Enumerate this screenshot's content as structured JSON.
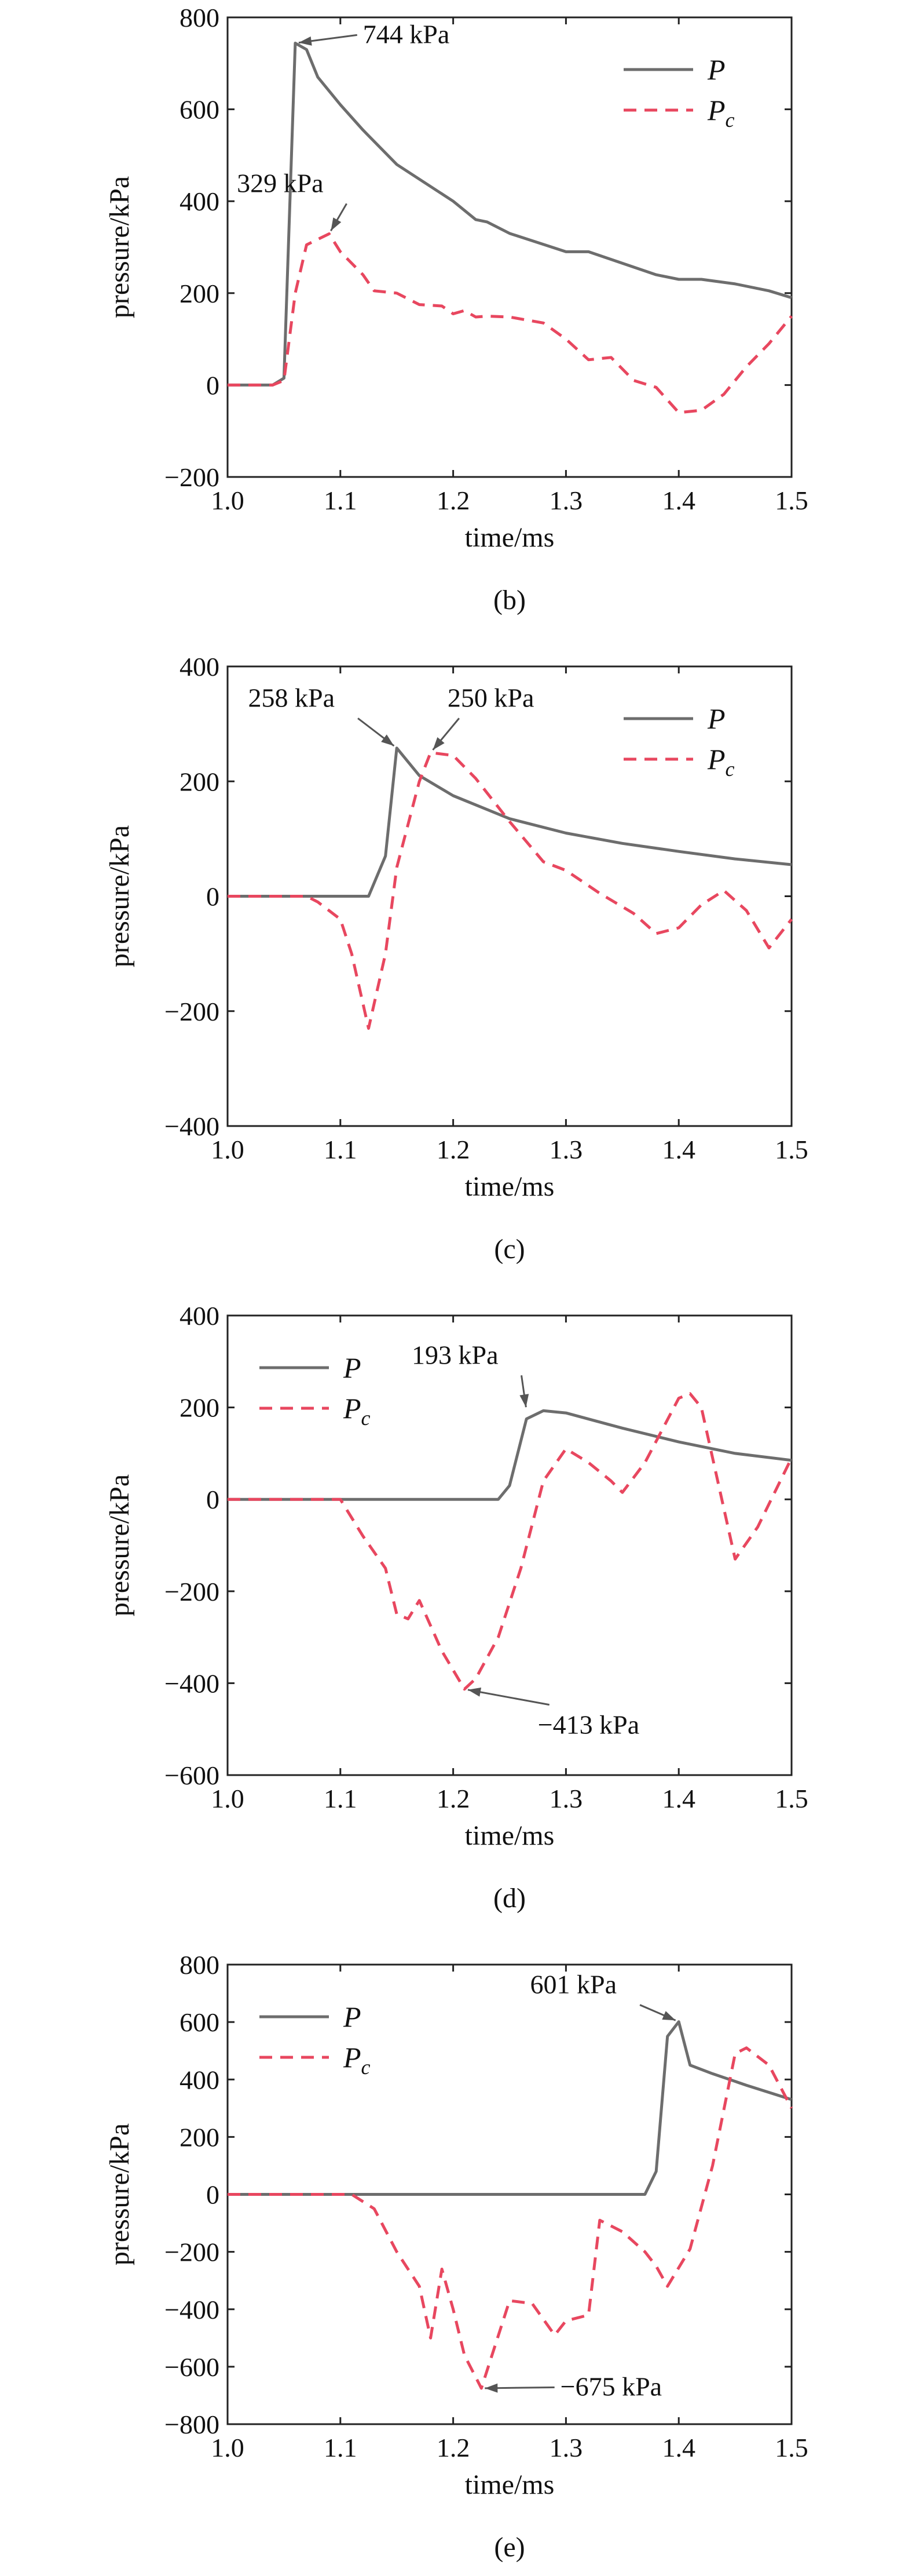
{
  "chart_data": [
    {
      "type": "line",
      "caption": "(b)",
      "xlabel": "time/ms",
      "ylabel": "pressure/kPa",
      "xlim": [
        1.0,
        1.5
      ],
      "ylim": [
        -200,
        800
      ],
      "xticks": [
        1.0,
        1.1,
        1.2,
        1.3,
        1.4,
        1.5
      ],
      "yticks": [
        -200,
        0,
        200,
        400,
        600,
        800
      ],
      "xtick_labels": [
        "1.0",
        "1.1",
        "1.2",
        "1.3",
        "1.4",
        "1.5"
      ],
      "ytick_labels": [
        "−200",
        "0",
        "200",
        "400",
        "600",
        "800"
      ],
      "legend": {
        "position": "top-right",
        "entries": [
          {
            "main": "P",
            "sub": ""
          },
          {
            "main": "P",
            "sub": "c"
          }
        ]
      },
      "series": [
        {
          "name": "P",
          "style": "solid",
          "color": "#6d6d6d",
          "x": [
            1.0,
            1.04,
            1.05,
            1.06,
            1.07,
            1.08,
            1.1,
            1.12,
            1.15,
            1.2,
            1.22,
            1.23,
            1.25,
            1.3,
            1.32,
            1.35,
            1.38,
            1.4,
            1.42,
            1.45,
            1.48,
            1.5
          ],
          "y": [
            0,
            0,
            15,
            744,
            730,
            670,
            610,
            555,
            480,
            400,
            360,
            355,
            330,
            290,
            290,
            265,
            240,
            230,
            230,
            220,
            205,
            190
          ]
        },
        {
          "name": "Pc",
          "style": "dashed",
          "color": "#e8475f",
          "x": [
            1.0,
            1.04,
            1.05,
            1.06,
            1.07,
            1.09,
            1.1,
            1.12,
            1.13,
            1.15,
            1.17,
            1.19,
            1.2,
            1.21,
            1.22,
            1.23,
            1.25,
            1.28,
            1.3,
            1.32,
            1.34,
            1.36,
            1.38,
            1.4,
            1.42,
            1.44,
            1.46,
            1.48,
            1.5
          ],
          "y": [
            0,
            0,
            10,
            200,
            305,
            329,
            290,
            240,
            205,
            200,
            175,
            172,
            155,
            162,
            148,
            150,
            148,
            135,
            100,
            55,
            60,
            10,
            -5,
            -60,
            -55,
            -20,
            40,
            90,
            150
          ]
        }
      ],
      "annotations": [
        {
          "text": "744 kPa",
          "x": 1.06,
          "y": 744,
          "tx": 1.12,
          "ty": 744
        },
        {
          "text": "329 kPa",
          "x": 1.09,
          "y": 329,
          "tx": 1.085,
          "ty": 420
        }
      ]
    },
    {
      "type": "line",
      "caption": "(c)",
      "xlabel": "time/ms",
      "ylabel": "pressure/kPa",
      "xlim": [
        1.0,
        1.5
      ],
      "ylim": [
        -400,
        400
      ],
      "xticks": [
        1.0,
        1.1,
        1.2,
        1.3,
        1.4,
        1.5
      ],
      "yticks": [
        -400,
        -200,
        0,
        200,
        400
      ],
      "xtick_labels": [
        "1.0",
        "1.1",
        "1.2",
        "1.3",
        "1.4",
        "1.5"
      ],
      "ytick_labels": [
        "−400",
        "−200",
        "0",
        "200",
        "400"
      ],
      "legend": {
        "position": "top-right",
        "entries": [
          {
            "main": "P",
            "sub": ""
          },
          {
            "main": "P",
            "sub": "c"
          }
        ]
      },
      "series": [
        {
          "name": "P",
          "style": "solid",
          "color": "#6d6d6d",
          "x": [
            1.0,
            1.125,
            1.14,
            1.15,
            1.17,
            1.2,
            1.25,
            1.3,
            1.35,
            1.4,
            1.45,
            1.5
          ],
          "y": [
            0,
            0,
            70,
            258,
            210,
            175,
            135,
            110,
            92,
            78,
            65,
            55
          ]
        },
        {
          "name": "Pc",
          "style": "dashed",
          "color": "#e8475f",
          "x": [
            1.0,
            1.07,
            1.08,
            1.1,
            1.11,
            1.125,
            1.14,
            1.15,
            1.17,
            1.18,
            1.2,
            1.22,
            1.25,
            1.28,
            1.3,
            1.33,
            1.36,
            1.38,
            1.4,
            1.42,
            1.44,
            1.46,
            1.48,
            1.5
          ],
          "y": [
            0,
            0,
            -10,
            -40,
            -100,
            -230,
            -100,
            50,
            200,
            250,
            245,
            205,
            130,
            60,
            45,
            5,
            -30,
            -65,
            -55,
            -15,
            10,
            -25,
            -90,
            -40
          ]
        }
      ],
      "annotations": [
        {
          "text": "258 kPa",
          "x": 1.15,
          "y": 258,
          "tx": 1.095,
          "ty": 330
        },
        {
          "text": "250 kPa",
          "x": 1.18,
          "y": 250,
          "tx": 1.195,
          "ty": 330
        }
      ]
    },
    {
      "type": "line",
      "caption": "(d)",
      "xlabel": "time/ms",
      "ylabel": "pressure/kPa",
      "xlim": [
        1.0,
        1.5
      ],
      "ylim": [
        -600,
        400
      ],
      "xticks": [
        1.0,
        1.1,
        1.2,
        1.3,
        1.4,
        1.5
      ],
      "yticks": [
        -600,
        -400,
        -200,
        0,
        200,
        400
      ],
      "xtick_labels": [
        "1.0",
        "1.1",
        "1.2",
        "1.3",
        "1.4",
        "1.5"
      ],
      "ytick_labels": [
        "−600",
        "−400",
        "−200",
        "0",
        "200",
        "400"
      ],
      "legend": {
        "position": "top-left",
        "entries": [
          {
            "main": "P",
            "sub": ""
          },
          {
            "main": "P",
            "sub": "c"
          }
        ]
      },
      "series": [
        {
          "name": "P",
          "style": "solid",
          "color": "#6d6d6d",
          "x": [
            1.0,
            1.24,
            1.25,
            1.265,
            1.28,
            1.3,
            1.35,
            1.4,
            1.45,
            1.5
          ],
          "y": [
            0,
            0,
            30,
            175,
            193,
            188,
            155,
            125,
            100,
            85
          ]
        },
        {
          "name": "Pc",
          "style": "dashed",
          "color": "#e8475f",
          "x": [
            1.0,
            1.1,
            1.12,
            1.14,
            1.15,
            1.16,
            1.17,
            1.19,
            1.21,
            1.22,
            1.24,
            1.26,
            1.28,
            1.3,
            1.32,
            1.34,
            1.35,
            1.37,
            1.4,
            1.41,
            1.42,
            1.44,
            1.45,
            1.47,
            1.5
          ],
          "y": [
            0,
            0,
            -80,
            -150,
            -250,
            -260,
            -220,
            -330,
            -413,
            -390,
            -300,
            -150,
            40,
            110,
            80,
            40,
            15,
            80,
            220,
            230,
            200,
            -20,
            -130,
            -60,
            90
          ]
        }
      ],
      "annotations": [
        {
          "text": "193 kPa",
          "x": 1.265,
          "y": 193,
          "tx": 1.24,
          "ty": 295
        },
        {
          "text": "−413 kPa",
          "x": 1.21,
          "y": -413,
          "tx": 1.275,
          "ty": -510
        }
      ]
    },
    {
      "type": "line",
      "caption": "(e)",
      "xlabel": "time/ms",
      "ylabel": "pressure/kPa",
      "xlim": [
        1.0,
        1.5
      ],
      "ylim": [
        -800,
        800
      ],
      "xticks": [
        1.0,
        1.1,
        1.2,
        1.3,
        1.4,
        1.5
      ],
      "yticks": [
        -800,
        -600,
        -400,
        -200,
        0,
        200,
        400,
        600,
        800
      ],
      "xtick_labels": [
        "1.0",
        "1.1",
        "1.2",
        "1.3",
        "1.4",
        "1.5"
      ],
      "ytick_labels": [
        "−800",
        "−600",
        "−400",
        "−200",
        "0",
        "200",
        "400",
        "600",
        "800"
      ],
      "legend": {
        "position": "top-left",
        "entries": [
          {
            "main": "P",
            "sub": ""
          },
          {
            "main": "P",
            "sub": "c"
          }
        ]
      },
      "series": [
        {
          "name": "P",
          "style": "solid",
          "color": "#6d6d6d",
          "x": [
            1.0,
            1.37,
            1.38,
            1.39,
            1.4,
            1.41,
            1.43,
            1.46,
            1.5
          ],
          "y": [
            0,
            0,
            80,
            550,
            601,
            450,
            420,
            380,
            330
          ]
        },
        {
          "name": "Pc",
          "style": "dashed",
          "color": "#e8475f",
          "x": [
            1.0,
            1.11,
            1.13,
            1.15,
            1.17,
            1.18,
            1.19,
            1.2,
            1.21,
            1.225,
            1.25,
            1.27,
            1.29,
            1.3,
            1.32,
            1.33,
            1.35,
            1.37,
            1.38,
            1.39,
            1.41,
            1.43,
            1.45,
            1.46,
            1.48,
            1.5
          ],
          "y": [
            0,
            0,
            -50,
            -200,
            -320,
            -500,
            -260,
            -400,
            -560,
            -675,
            -370,
            -380,
            -490,
            -440,
            -420,
            -90,
            -130,
            -200,
            -250,
            -320,
            -190,
            100,
            490,
            510,
            450,
            300
          ]
        }
      ],
      "annotations": [
        {
          "text": "601 kPa",
          "x": 1.4,
          "y": 601,
          "tx": 1.345,
          "ty": 700
        },
        {
          "text": "−675 kPa",
          "x": 1.225,
          "y": -675,
          "tx": 1.295,
          "ty": -700
        }
      ]
    }
  ]
}
